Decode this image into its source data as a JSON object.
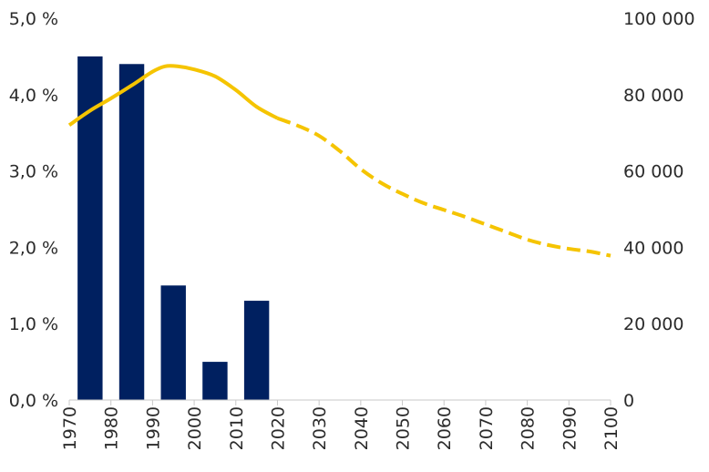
{
  "chart_data": {
    "type": "bar",
    "title": "",
    "xlabel": "",
    "ylabel": "",
    "x_ticks": [
      "1970",
      "1980",
      "1990",
      "2000",
      "2010",
      "2020",
      "2030",
      "2040",
      "2050",
      "2060",
      "2070",
      "2080",
      "2090",
      "2100"
    ],
    "x_range": [
      1970,
      2100
    ],
    "y_left": {
      "ticks": [
        "0,0 %",
        "1,0 %",
        "2,0 %",
        "3,0 %",
        "4,0 %",
        "5,0 %"
      ],
      "range": [
        0,
        5
      ]
    },
    "y_right": {
      "ticks": [
        "0",
        "20 000",
        "40 000",
        "60 000",
        "80 000",
        "100 000"
      ],
      "range": [
        0,
        100000
      ]
    },
    "grid": false,
    "bars": {
      "axis": "left",
      "color": "#002060",
      "categories": [
        "1970-1980",
        "1980-1990",
        "1990-2000",
        "2000-2010",
        "2010-2020"
      ],
      "x_center": [
        1975,
        1985,
        1995,
        2005,
        2015
      ],
      "values": [
        4.5,
        4.4,
        1.5,
        0.5,
        1.3
      ]
    },
    "line_history": {
      "axis": "right",
      "color": "#f5c400",
      "style": "solid",
      "x": [
        1970,
        1975,
        1980,
        1985,
        1990,
        1993,
        1996,
        2000,
        2005,
        2010,
        2015,
        2020
      ],
      "y": [
        72000,
        75800,
        79000,
        82400,
        86000,
        87400,
        87400,
        86600,
        84800,
        81200,
        76800,
        73800
      ]
    },
    "line_projection": {
      "axis": "right",
      "color": "#f5c400",
      "style": "dashed",
      "x": [
        2020,
        2025,
        2030,
        2035,
        2040,
        2045,
        2050,
        2055,
        2060,
        2065,
        2070,
        2075,
        2080,
        2085,
        2090,
        2095,
        2100
      ],
      "y": [
        73800,
        71800,
        69200,
        65200,
        60500,
        56800,
        54000,
        51600,
        49800,
        48000,
        46000,
        44000,
        42000,
        40600,
        39600,
        38900,
        37800
      ]
    }
  }
}
